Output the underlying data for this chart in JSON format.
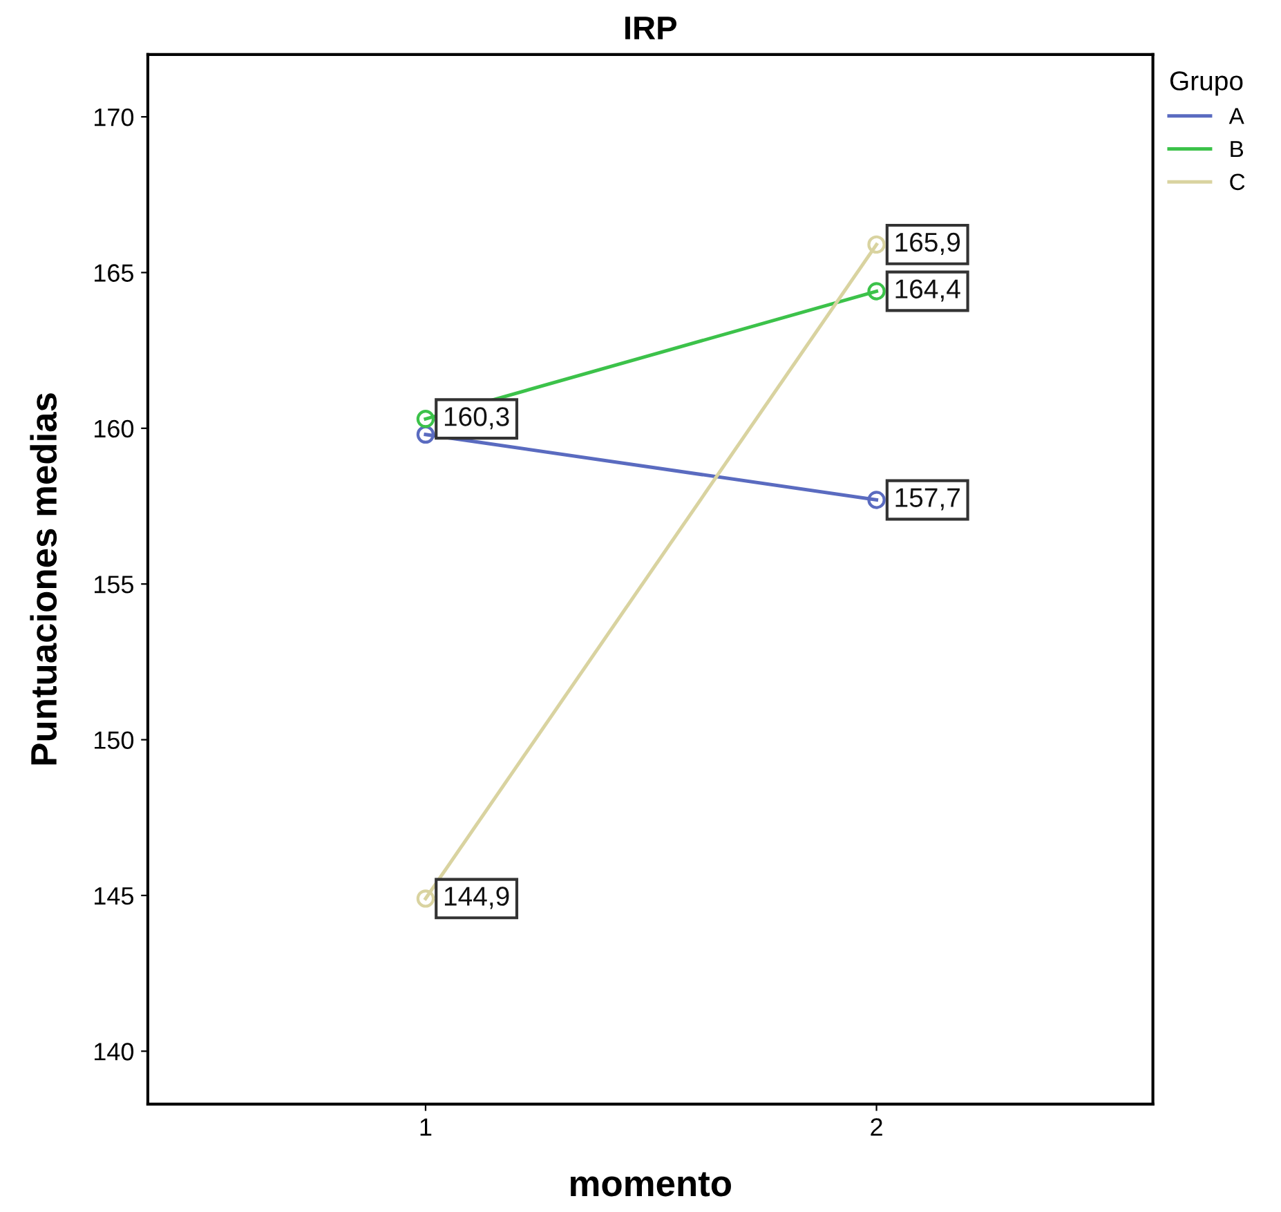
{
  "chart_data": {
    "type": "line",
    "title": "IRP",
    "xlabel": "momento",
    "ylabel": "Puntuaciones medias",
    "legend_title": "Grupo",
    "categories": [
      "1",
      "2"
    ],
    "series": [
      {
        "name": "A",
        "color": "#5a6bc0",
        "values": [
          159.8,
          157.7
        ],
        "value_labels": [
          null,
          "157,7"
        ]
      },
      {
        "name": "B",
        "color": "#3cc24a",
        "values": [
          160.3,
          164.4
        ],
        "value_labels": [
          "160,3",
          "164,4"
        ]
      },
      {
        "name": "C",
        "color": "#d9d3a0",
        "values": [
          144.9,
          165.9
        ],
        "value_labels": [
          "144,9",
          "165,9"
        ]
      }
    ],
    "ylim": [
      138.3,
      172
    ],
    "yticks": [
      140,
      145,
      150,
      155,
      160,
      165,
      170
    ],
    "grid": false,
    "legend": "top right",
    "marker": "circle",
    "line_style": "solid"
  }
}
